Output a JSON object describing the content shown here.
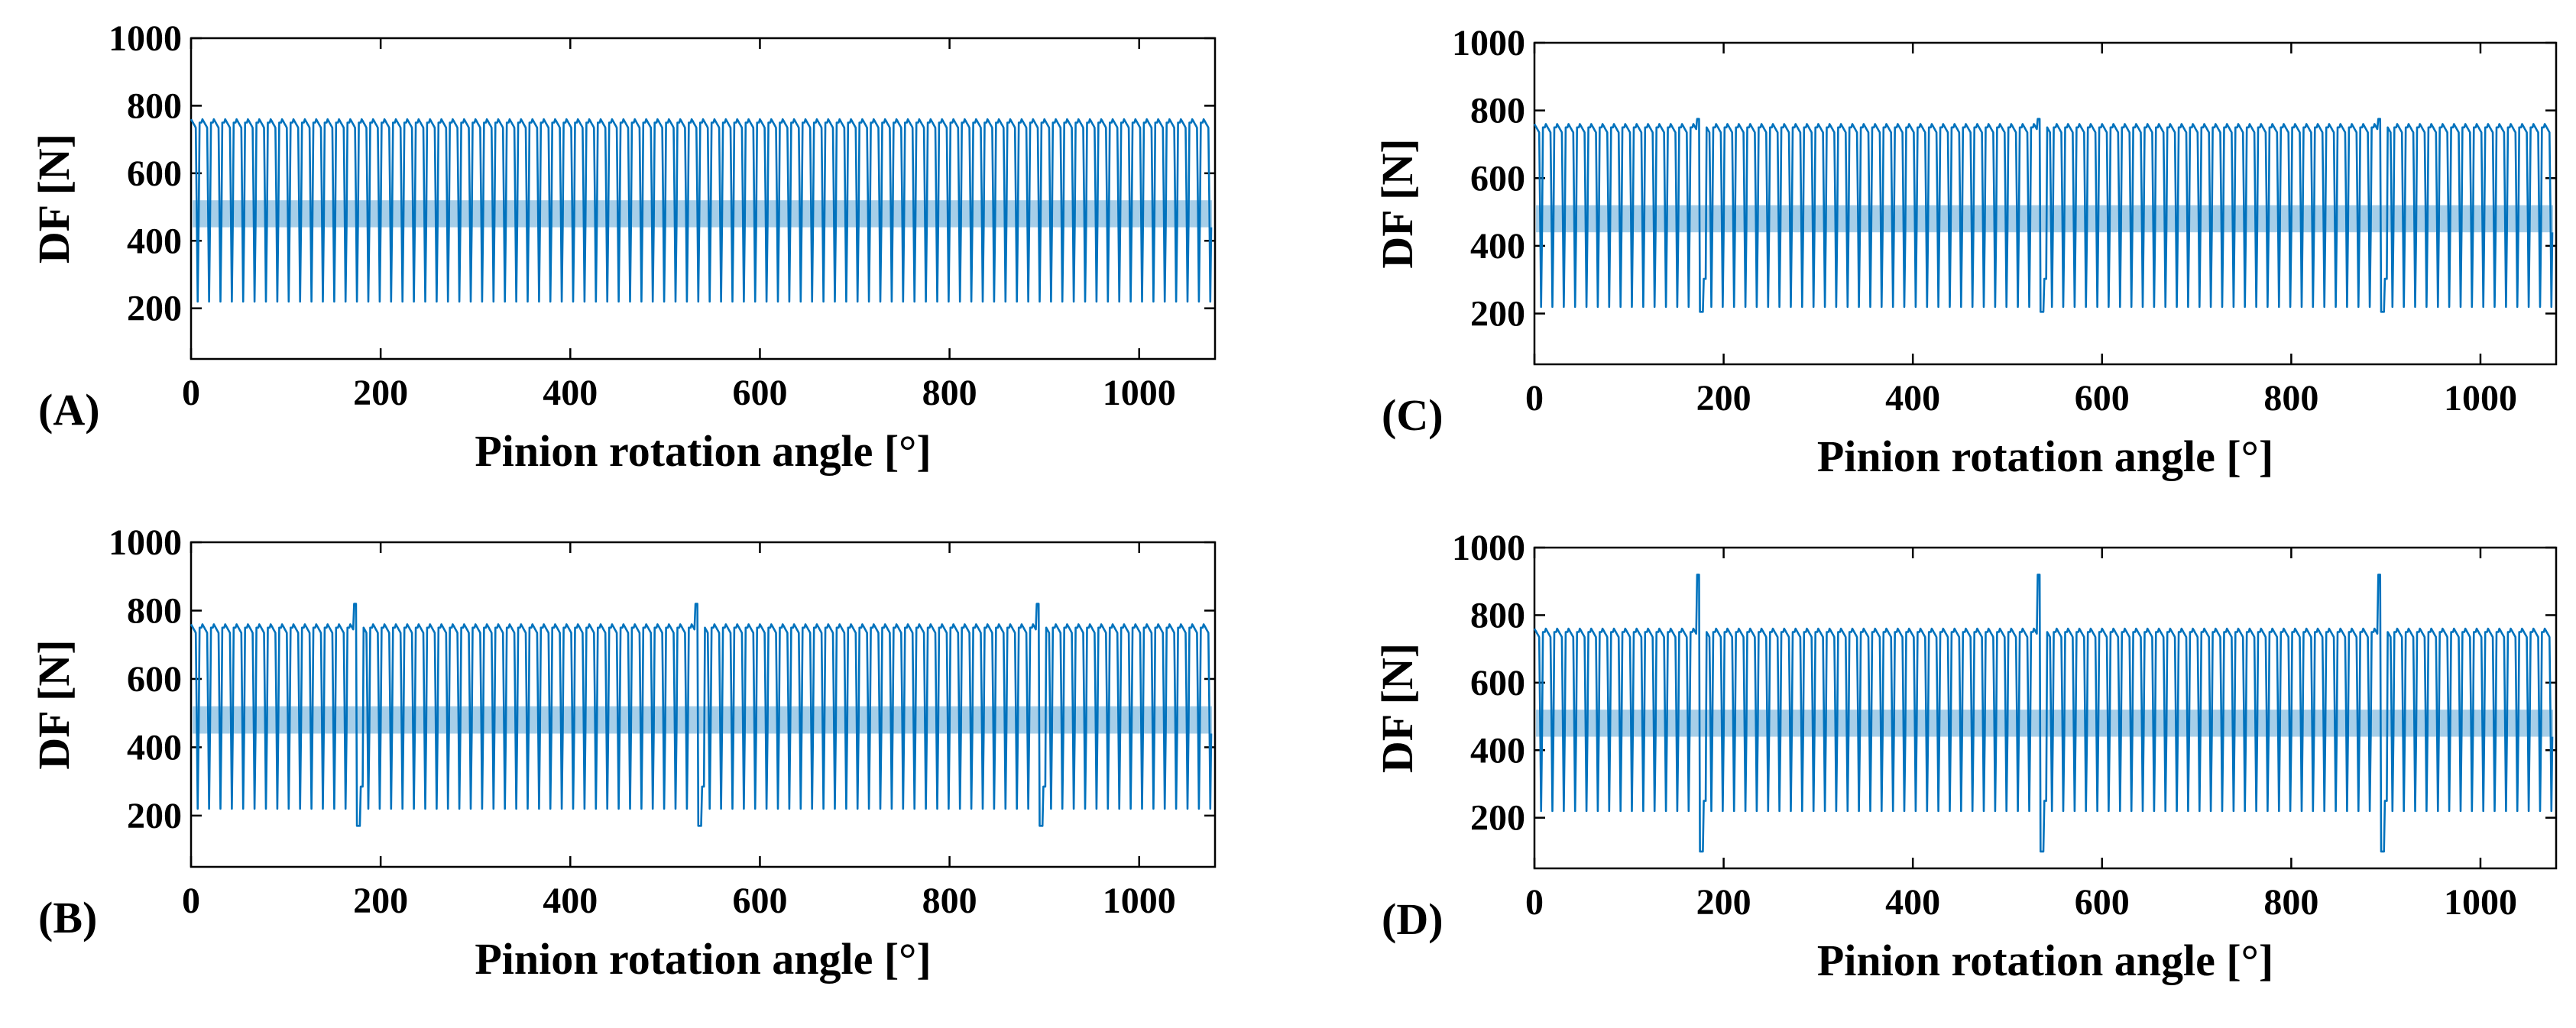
{
  "chart_data": [
    {
      "type": "line",
      "panel_label": "(A)",
      "xlabel": "Pinion rotation angle [°]",
      "ylabel": "DF [N]",
      "xlim": [
        0,
        1080
      ],
      "ylim": [
        50,
        1000
      ],
      "xticks": [
        0,
        200,
        400,
        600,
        800,
        1000
      ],
      "yticks": [
        200,
        400,
        600,
        800,
        1000
      ],
      "series": [
        {
          "name": "DF",
          "color": "#0072BD",
          "mesh_period_deg": 12,
          "peak": 760,
          "trough": 220,
          "mean": 480,
          "defect_angles": [],
          "defect_peak": 760,
          "defect_trough": 220
        }
      ]
    },
    {
      "type": "line",
      "panel_label": "(B)",
      "xlabel": "Pinion rotation angle [°]",
      "ylabel": "DF [N]",
      "xlim": [
        0,
        1080
      ],
      "ylim": [
        50,
        1000
      ],
      "xticks": [
        0,
        200,
        400,
        600,
        800,
        1000
      ],
      "yticks": [
        200,
        400,
        600,
        800,
        1000
      ],
      "series": [
        {
          "name": "DF",
          "color": "#0072BD",
          "mesh_period_deg": 12,
          "peak": 760,
          "trough": 220,
          "mean": 480,
          "defect_angles": [
            175,
            535,
            895
          ],
          "defect_peak": 820,
          "defect_trough": 170
        }
      ]
    },
    {
      "type": "line",
      "panel_label": "(C)",
      "xlabel": "Pinion rotation angle [°]",
      "ylabel": "DF [N]",
      "xlim": [
        0,
        1080
      ],
      "ylim": [
        50,
        1000
      ],
      "xticks": [
        0,
        200,
        400,
        600,
        800,
        1000
      ],
      "yticks": [
        200,
        400,
        600,
        800,
        1000
      ],
      "series": [
        {
          "name": "DF",
          "color": "#0072BD",
          "mesh_period_deg": 12,
          "peak": 760,
          "trough": 220,
          "mean": 480,
          "defect_angles": [
            175,
            535,
            895
          ],
          "defect_peak": 775,
          "defect_trough": 205
        }
      ]
    },
    {
      "type": "line",
      "panel_label": "(D)",
      "xlabel": "Pinion rotation angle [°]",
      "ylabel": "DF [N]",
      "xlim": [
        0,
        1080
      ],
      "ylim": [
        50,
        1000
      ],
      "xticks": [
        0,
        200,
        400,
        600,
        800,
        1000
      ],
      "yticks": [
        200,
        400,
        600,
        800,
        1000
      ],
      "series": [
        {
          "name": "DF",
          "color": "#0072BD",
          "mesh_period_deg": 12,
          "peak": 760,
          "trough": 220,
          "mean": 480,
          "defect_angles": [
            175,
            535,
            895
          ],
          "defect_peak": 920,
          "defect_trough": 100
        }
      ]
    }
  ]
}
